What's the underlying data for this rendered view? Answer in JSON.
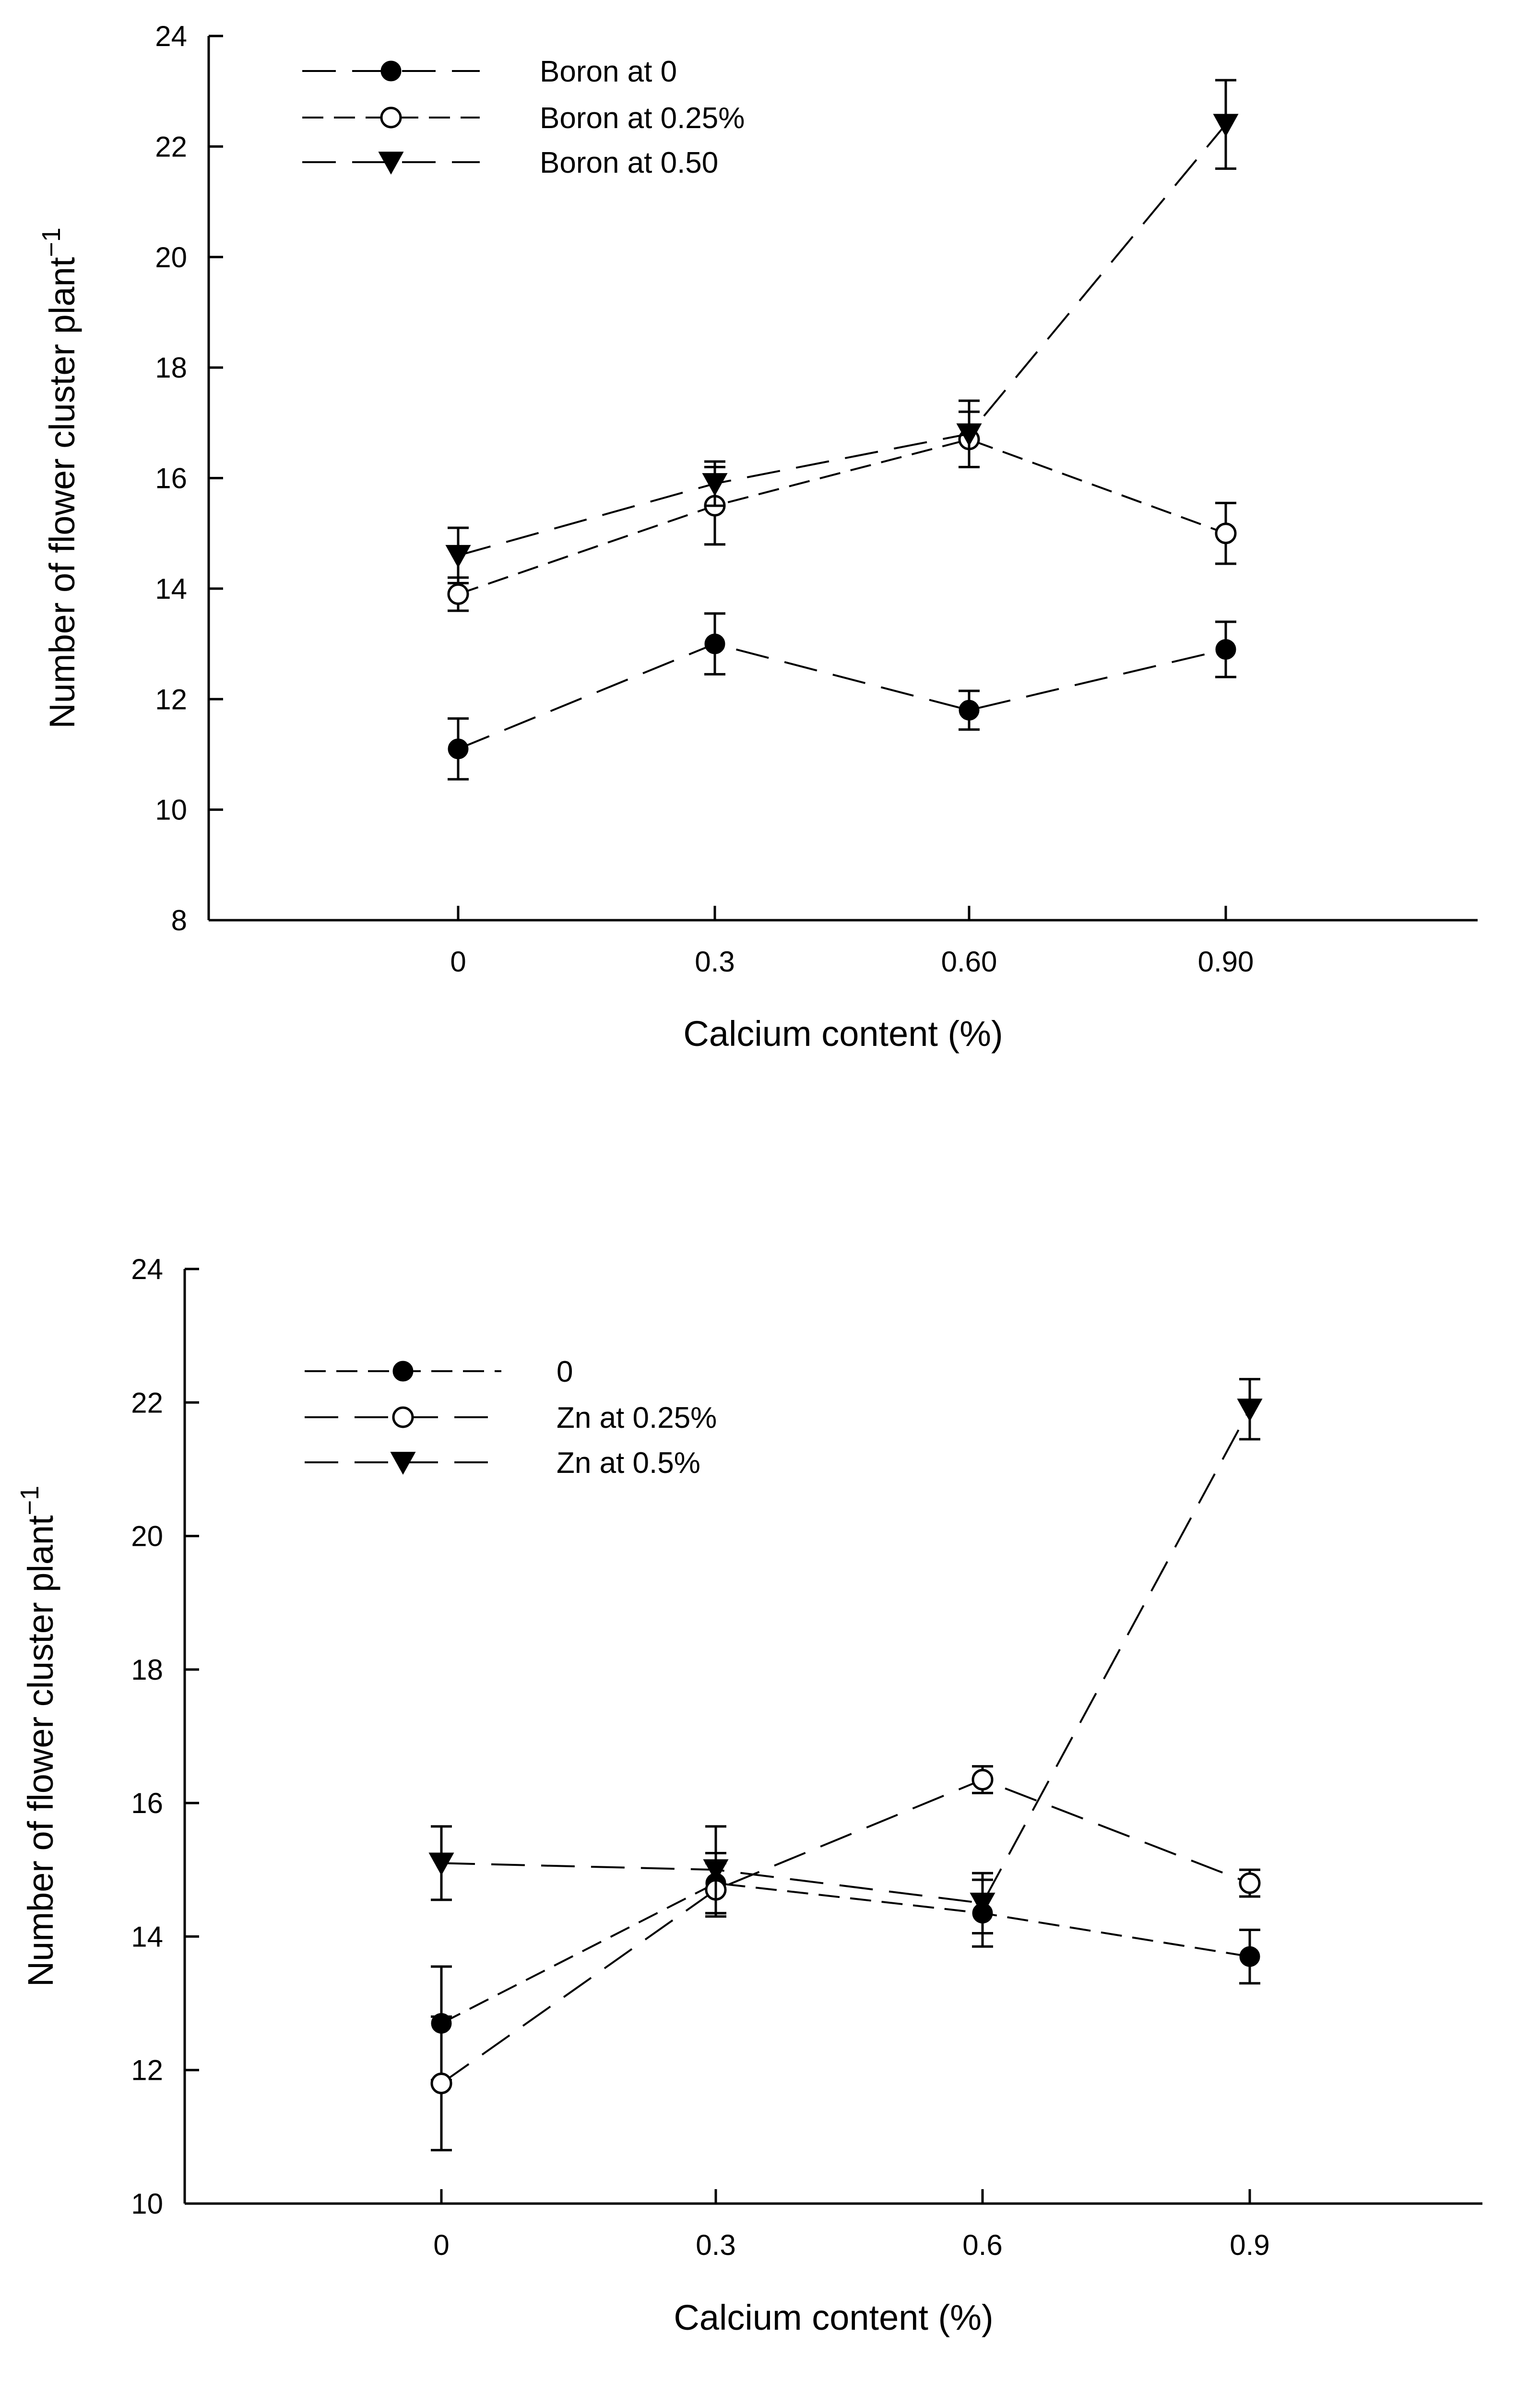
{
  "chart_data": [
    {
      "type": "line",
      "title": "",
      "xlabel": "Calcium content (%)",
      "ylabel": "Number of flower cluster plant",
      "ylabel_superscript": "−1",
      "categories": [
        "0",
        "0.3",
        "0.60",
        "0.90"
      ],
      "ylim": [
        8,
        24
      ],
      "yticks": [
        "8",
        "10",
        "12",
        "14",
        "16",
        "18",
        "20",
        "22",
        "24"
      ],
      "legend_position": "top-left",
      "series": [
        {
          "name": "Boron at 0",
          "marker": "filled-circle",
          "dash": "long",
          "values": [
            11.1,
            13.0,
            11.8,
            12.9
          ],
          "errors": [
            0.55,
            0.55,
            0.35,
            0.5
          ]
        },
        {
          "name": "Boron at 0.25%",
          "marker": "open-circle",
          "dash": "short",
          "values": [
            13.9,
            15.5,
            16.7,
            15.0
          ],
          "errors": [
            0.3,
            0.7,
            0.5,
            0.55
          ]
        },
        {
          "name": "Boron at 0.50",
          "marker": "filled-triangle-down",
          "dash": "long",
          "values": [
            14.6,
            15.9,
            16.8,
            22.4
          ],
          "errors": [
            0.5,
            0.4,
            0.6,
            0.8
          ]
        }
      ]
    },
    {
      "type": "line",
      "title": "",
      "xlabel": "Calcium content (%)",
      "ylabel": "Number of flower cluster plant",
      "ylabel_superscript": "−1",
      "categories": [
        "0",
        "0.3",
        "0.6",
        "0.9"
      ],
      "ylim": [
        10,
        24
      ],
      "yticks": [
        "10",
        "12",
        "14",
        "16",
        "18",
        "20",
        "22",
        "24"
      ],
      "legend_position": "top-left",
      "series": [
        {
          "name": "0",
          "marker": "filled-circle",
          "dash": "short",
          "values": [
            12.7,
            14.8,
            14.35,
            13.7
          ],
          "errors": [
            0.85,
            0.45,
            0.5,
            0.4
          ]
        },
        {
          "name": "Zn at 0.25%",
          "marker": "open-circle",
          "dash": "long",
          "values": [
            11.8,
            14.7,
            16.35,
            14.8
          ],
          "errors": [
            1.0,
            0.4,
            0.2,
            0.2
          ]
        },
        {
          "name": "Zn at 0.5%",
          "marker": "filled-triangle-down",
          "dash": "long",
          "values": [
            15.1,
            15.0,
            14.5,
            21.9
          ],
          "errors": [
            0.55,
            0.65,
            0.45,
            0.45
          ]
        }
      ]
    }
  ]
}
